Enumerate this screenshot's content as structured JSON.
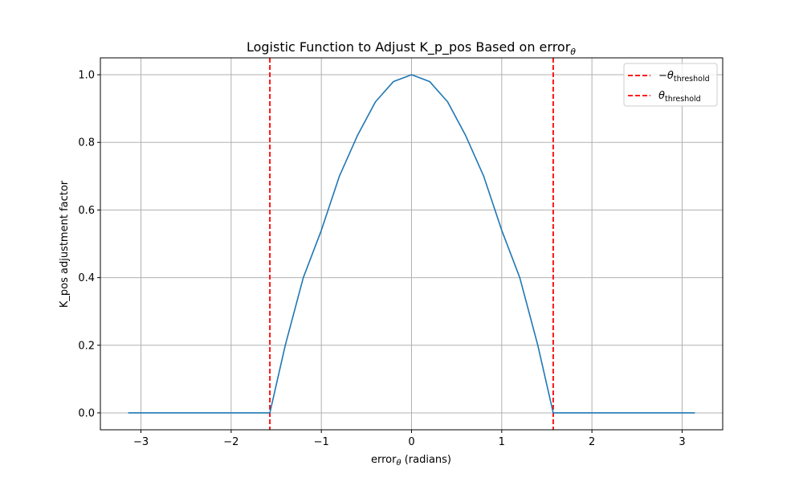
{
  "chart_data": {
    "type": "line",
    "title": "Logistic Function to Adjust K_p_pos Based on error",
    "title_subscript": "θ",
    "xlabel": "error",
    "xlabel_subscript": "θ",
    "xlabel_suffix": " (radians)",
    "ylabel": "K_pos adjustment factor",
    "xlim": [
      -3.45,
      3.45
    ],
    "ylim": [
      -0.05,
      1.05
    ],
    "xticks": [
      -3,
      -2,
      -1,
      0,
      1,
      2,
      3
    ],
    "xtick_labels": [
      "−3",
      "−2",
      "−1",
      "0",
      "1",
      "2",
      "3"
    ],
    "yticks": [
      0.0,
      0.2,
      0.4,
      0.6,
      0.8,
      1.0
    ],
    "ytick_labels": [
      "0.0",
      "0.2",
      "0.4",
      "0.6",
      "0.8",
      "1.0"
    ],
    "grid": true,
    "legend_position": "top-right",
    "series": [
      {
        "x": [
          -3.1416,
          -2.8,
          -2.4,
          -2.0,
          -1.5708,
          -1.4,
          -1.2,
          -1.0,
          -0.8,
          -0.6,
          -0.4,
          -0.2,
          0.0,
          0.2,
          0.4,
          0.6,
          0.8,
          1.0,
          1.2,
          1.4,
          1.5708,
          2.0,
          2.4,
          2.8,
          3.1416
        ],
        "y": [
          0.0,
          0.0,
          0.0,
          0.0,
          0.0,
          0.2,
          0.4,
          0.54,
          0.7,
          0.82,
          0.92,
          0.98,
          1.0,
          0.98,
          0.92,
          0.82,
          0.7,
          0.54,
          0.4,
          0.2,
          0.0,
          0.0,
          0.0,
          0.0,
          0.0
        ],
        "color": "#1f77b4"
      }
    ],
    "vlines": [
      {
        "x": -1.5708,
        "color": "#ff0000",
        "label_prefix": "−",
        "label_symbol": "θ",
        "label_sub": "threshold"
      },
      {
        "x": 1.5708,
        "color": "#ff0000",
        "label_prefix": "",
        "label_symbol": "θ",
        "label_sub": "threshold"
      }
    ]
  }
}
